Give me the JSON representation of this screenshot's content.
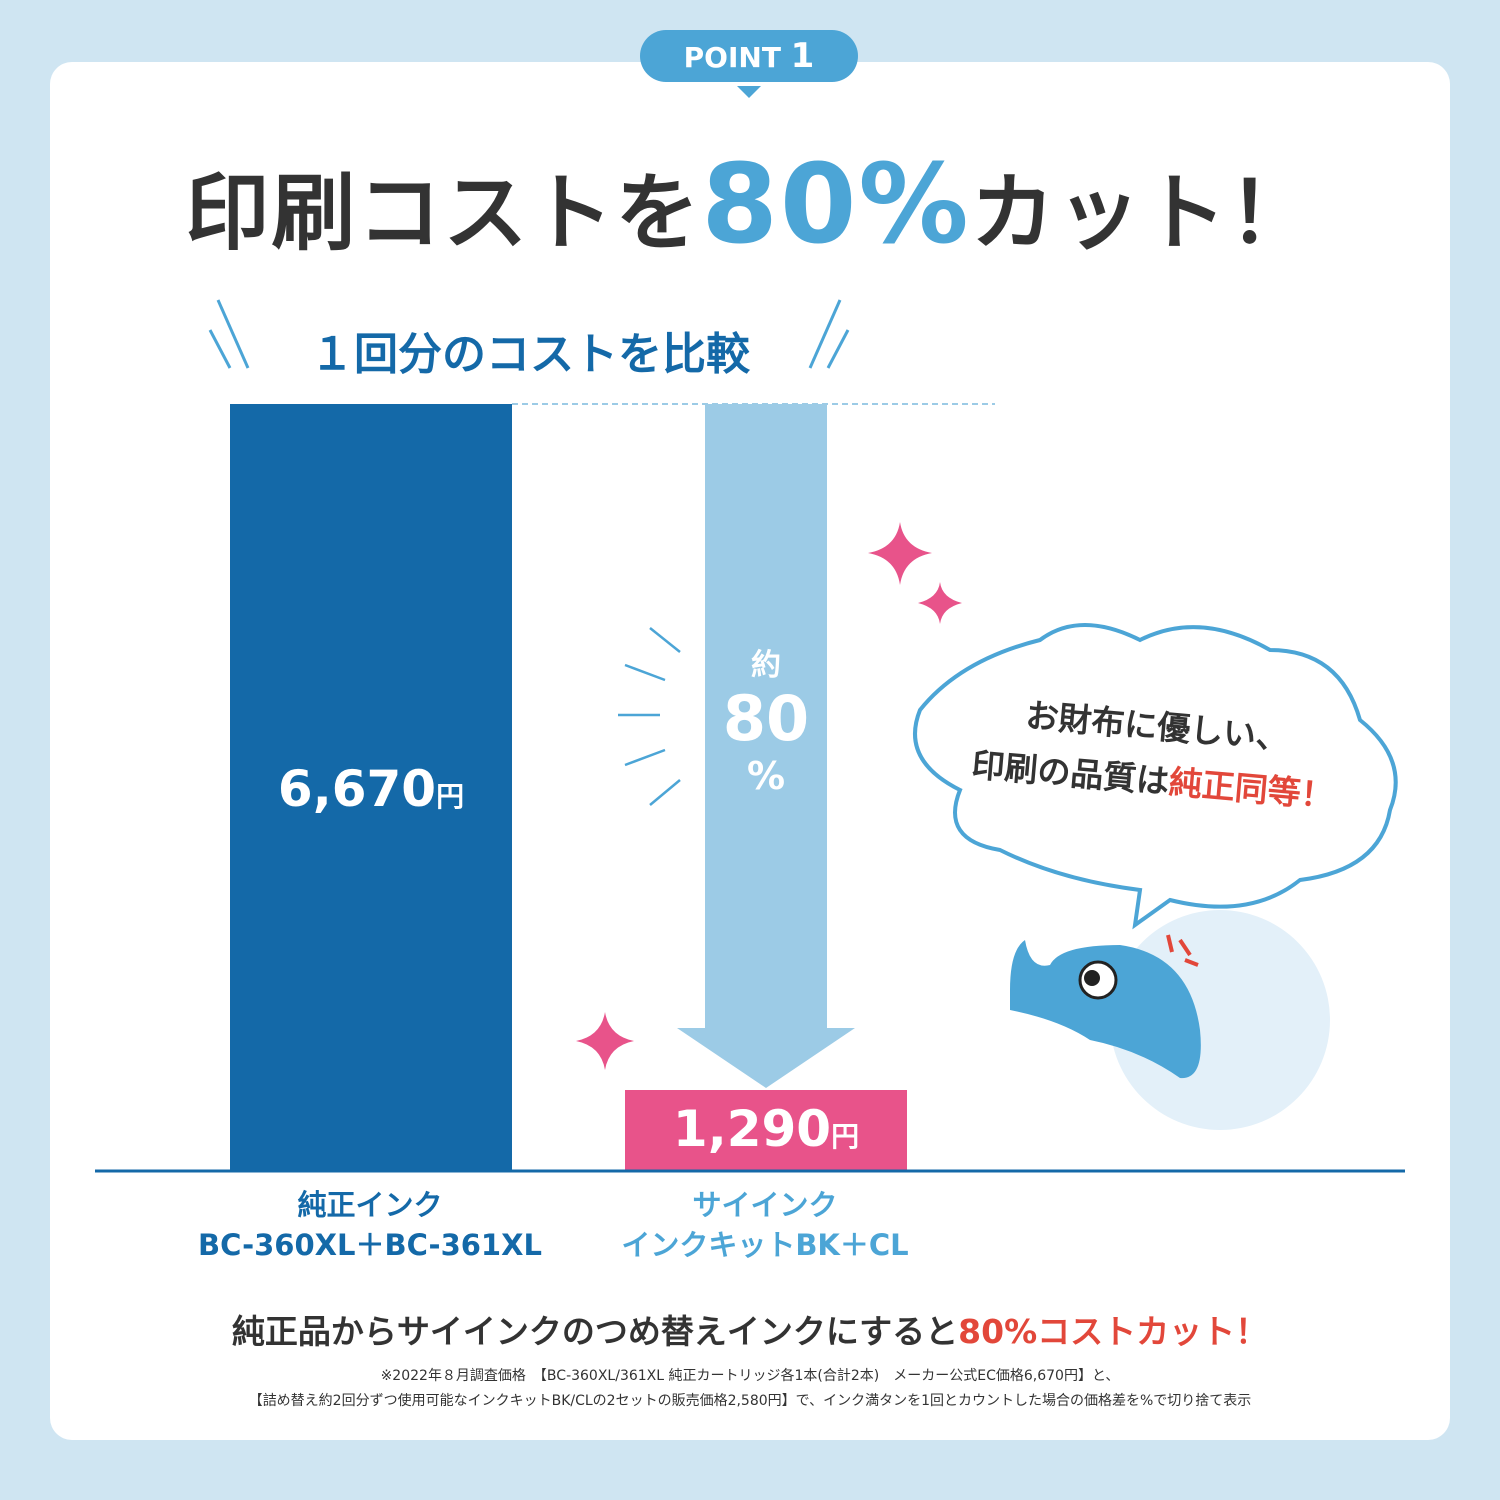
{
  "badge": {
    "label": "POINT",
    "number": "1"
  },
  "headline": {
    "pre": "印刷コストを",
    "big": "80%",
    "post": "カット！"
  },
  "subtitle": "１回分のコストを比較",
  "chart_data": {
    "type": "bar",
    "categories": [
      "純正インク BC-360XL＋BC-361XL",
      "サイインク インクキットBK＋CL"
    ],
    "values": [
      6670,
      1290
    ],
    "data_labels": [
      "6,670",
      "1,290"
    ],
    "unit": "円",
    "colors": [
      "#1469a8",
      "#e8538a"
    ],
    "reduction_label": {
      "prefix": "約",
      "value": "80",
      "unit": "%"
    },
    "ylim": [
      0,
      6670
    ]
  },
  "labels": {
    "genuine": {
      "line1": "純正インク",
      "line2": "BC-360XL＋BC-361XL",
      "color": "#1469a8"
    },
    "sai": {
      "line1": "サイインク",
      "line2": "インクキットBK＋CL",
      "color": "#4ca5d6"
    }
  },
  "bubble": {
    "line1": "お財布に優しい、",
    "line2_pre": "印刷の品質は",
    "line2_red": "純正同等！"
  },
  "footer": {
    "pre": "純正品からサイインクのつめ替えインクにすると",
    "red": "80%コストカット！"
  },
  "notes": [
    "※2022年８月調査価格　【BC-360XL/361XL 純正カートリッジ各1本(合計2本)　メーカー公式EC価格6,670円】と、",
    "【詰め替え約2回分ずつ使用可能なインクキットBK/CLの2セットの販売価格2,580円】で、インク満タンを1回とカウントした場合の価格差を%で切り捨て表示"
  ]
}
